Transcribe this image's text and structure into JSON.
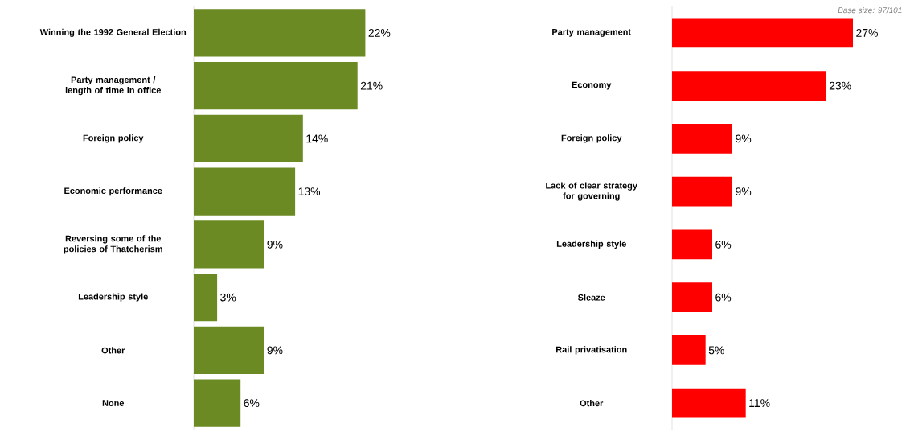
{
  "chart_data": [
    {
      "type": "bar",
      "orientation": "horizontal",
      "categories": [
        "Winning the 1992 General Election",
        "Party management / length of time in office",
        "Foreign policy",
        "Economic performance",
        "Reversing some of the policies of Thatcherism",
        "Leadership style",
        "Other",
        "None"
      ],
      "values": [
        22,
        21,
        14,
        13,
        9,
        3,
        9,
        6
      ],
      "value_labels": [
        "22%",
        "21%",
        "14%",
        "13%",
        "9%",
        "3%",
        "9%",
        "6%"
      ],
      "color": "#6b8a23",
      "tick_labels": "y"
    },
    {
      "type": "bar",
      "orientation": "horizontal",
      "categories": [
        "Party management",
        "Economy",
        "Foreign policy",
        "Lack of clear strategy for governing",
        "Leadership style",
        "Sleaze",
        "Rail privatisation",
        "Other"
      ],
      "values": [
        27,
        23,
        9,
        9,
        6,
        6,
        5,
        11
      ],
      "value_labels": [
        "27%",
        "23%",
        "9%",
        "9%",
        "6%",
        "6%",
        "5%",
        "11%"
      ],
      "color": "#ff0000",
      "tick_labels": "y",
      "annotations": [
        "Base size: 97/101"
      ]
    }
  ]
}
